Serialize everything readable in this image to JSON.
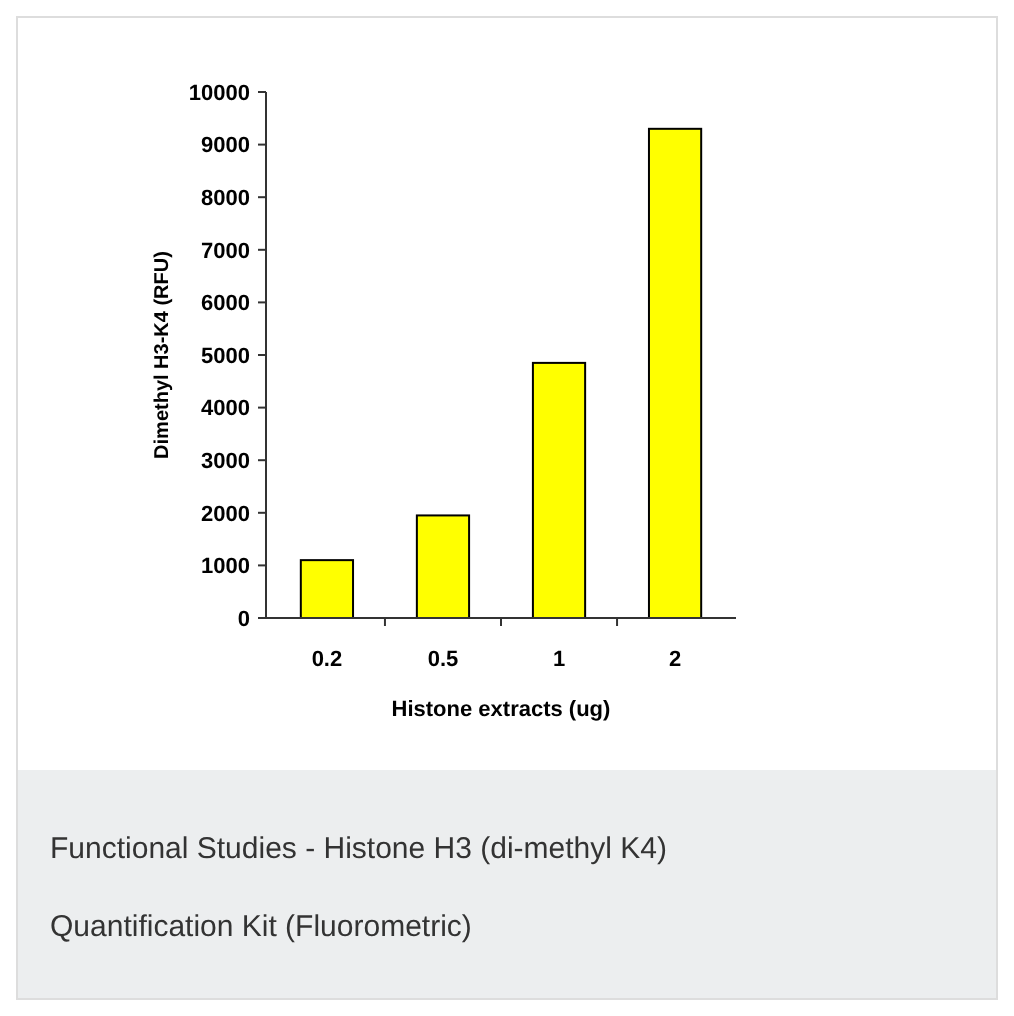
{
  "chart_data": {
    "type": "bar",
    "xlabel": "Histone extracts (ug)",
    "ylabel": "Dimethyl H3-K4 (RFU)",
    "categories": [
      "0.2",
      "0.5",
      "1",
      "2"
    ],
    "values": [
      1100,
      1950,
      4850,
      9300
    ],
    "color": "#ffff00",
    "ylim": [
      0,
      10000
    ],
    "yticks": [
      0,
      1000,
      2000,
      3000,
      4000,
      5000,
      6000,
      7000,
      8000,
      9000,
      10000
    ],
    "grid": false,
    "annotations": [
      "Functional Studies - Histone H3 (di-methyl K4)",
      "Quantification Kit (Fluorometric)"
    ]
  }
}
